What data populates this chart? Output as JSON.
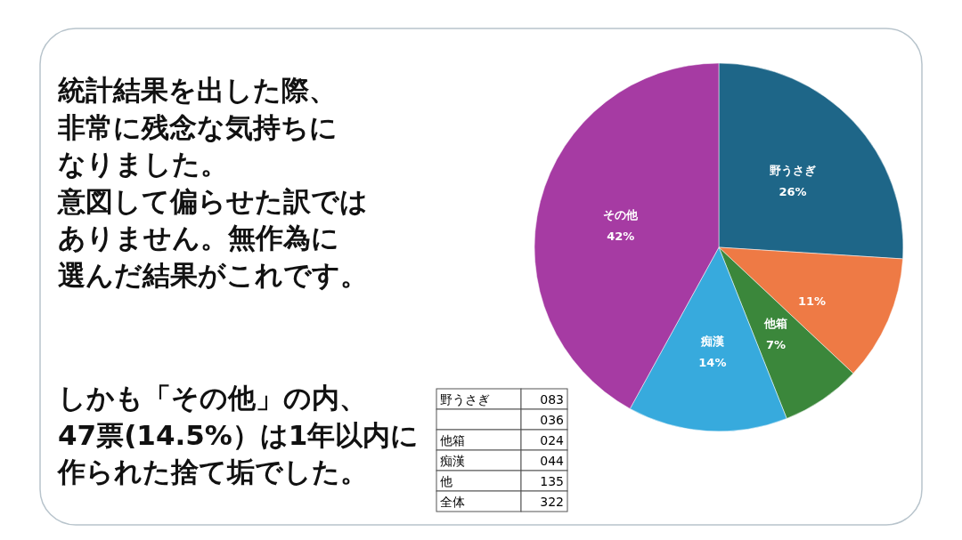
{
  "chart_data": {
    "type": "pie",
    "categories": [
      "野うさぎ",
      null,
      "他箱",
      "痴漢",
      "その他"
    ],
    "values": [
      26,
      11,
      7,
      14,
      42
    ],
    "value_labels": [
      "26%",
      "11%",
      "7%",
      "14%",
      "42%"
    ],
    "colors": [
      "#1e6688",
      "#ee7a45",
      "#3b873b",
      "#37aadd",
      "#a63ba3"
    ],
    "annotations": [
      "統計結果を出した際、",
      "非常に残念な気持ちに",
      "なりました。",
      "意図して偏らせた訳では",
      "ありません。無作為に",
      "選んだ結果がこれです。",
      "しかも「その他」の内、",
      "47票(14.5%）は1年以内に",
      "作られた捨て垢でした。",
      "野うさぎ\t083",
      "\t036",
      "他箱\t024",
      "痴漢\t044",
      "他\t135",
      "全体\t322"
    ]
  }
}
